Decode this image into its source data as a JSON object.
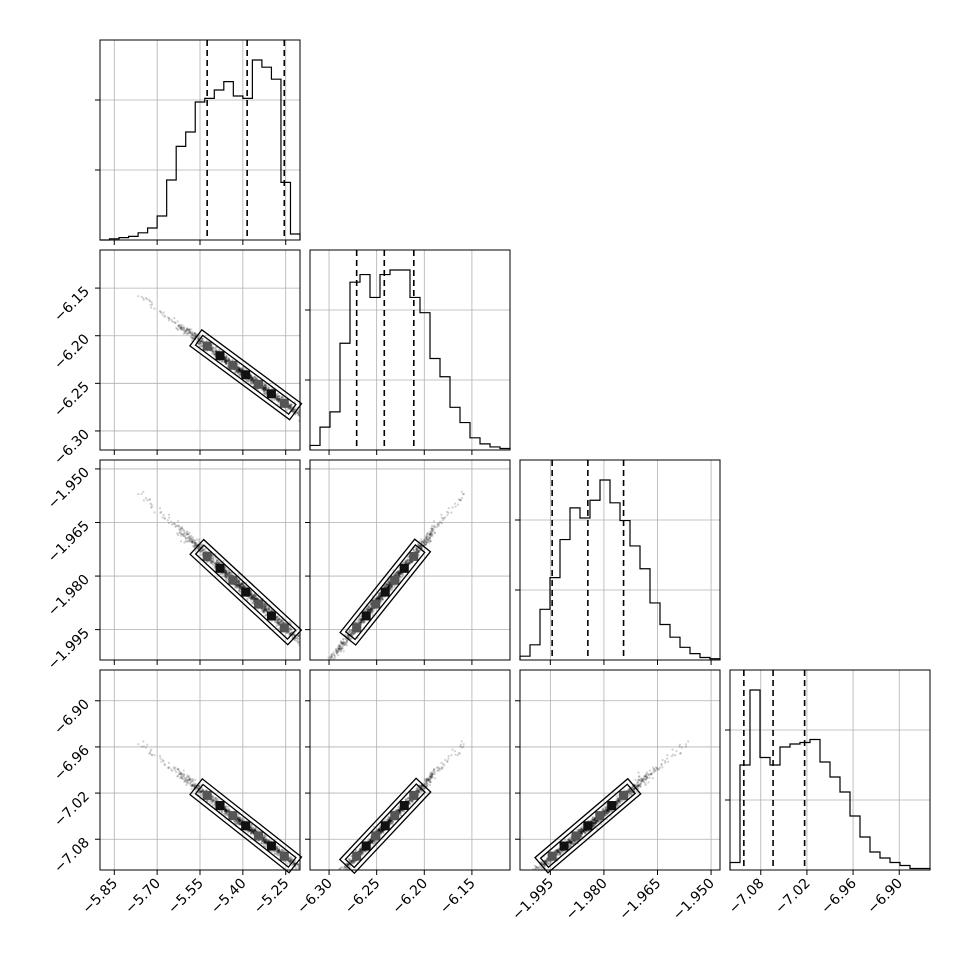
{
  "chart_data": {
    "type": "corner",
    "params": [
      {
        "range": [
          -5.9,
          -5.2
        ],
        "ticks": [
          -5.85,
          -5.7,
          -5.55,
          -5.4,
          -5.25
        ],
        "tick_labels": [
          "−5.85",
          "−5.70",
          "−5.55",
          "−5.40",
          "−5.25"
        ],
        "quantiles": [
          -5.525,
          -5.385,
          -5.255
        ]
      },
      {
        "range": [
          -6.32,
          -6.11
        ],
        "ticks": [
          -6.3,
          -6.25,
          -6.2,
          -6.15
        ],
        "tick_labels": [
          "−6.30",
          "−6.25",
          "−6.20",
          "−6.15"
        ],
        "quantiles": [
          -6.271,
          -6.242,
          -6.211
        ]
      },
      {
        "range": [
          -2.0035,
          -1.9475
        ],
        "ticks": [
          -1.995,
          -1.98,
          -1.965,
          -1.95
        ],
        "tick_labels": [
          "−1.995",
          "−1.980",
          "−1.965",
          "−1.950"
        ],
        "quantiles": [
          -1.9945,
          -1.9845,
          -1.9745
        ]
      },
      {
        "range": [
          -7.12,
          -6.86
        ],
        "ticks": [
          -7.08,
          -7.02,
          -6.96,
          -6.9
        ],
        "tick_labels": [
          "−7.08",
          "−7.02",
          "−6.96",
          "−6.90"
        ],
        "quantiles": [
          -7.102,
          -7.064,
          -7.023
        ]
      }
    ],
    "histograms": [
      [
        0,
        1,
        2,
        3,
        6,
        10,
        20,
        50,
        78,
        90,
        115,
        118,
        125,
        132,
        120,
        118,
        150,
        144,
        134,
        48,
        5
      ],
      [
        3,
        15,
        25,
        70,
        110,
        115,
        100,
        115,
        118,
        118,
        100,
        90,
        60,
        48,
        28,
        18,
        8,
        4,
        2,
        1
      ],
      [
        3,
        12,
        40,
        65,
        95,
        120,
        112,
        126,
        142,
        124,
        110,
        90,
        72,
        45,
        28,
        18,
        10,
        5,
        2,
        1
      ],
      [
        5,
        70,
        120,
        75,
        70,
        82,
        84,
        85,
        87,
        72,
        62,
        52,
        36,
        22,
        12,
        8,
        5,
        3,
        1,
        1
      ]
    ],
    "grid": true,
    "title": "",
    "xlabel": "",
    "ylabel": ""
  }
}
